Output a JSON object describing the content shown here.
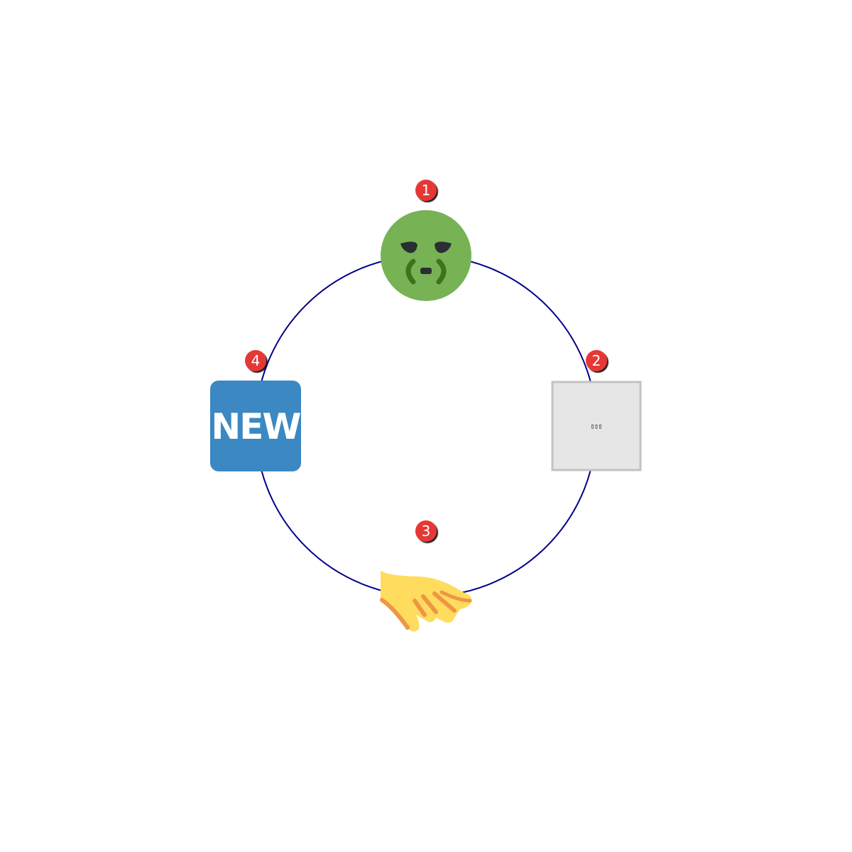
{
  "diagram": {
    "ring_color": "#00008b",
    "badge_color": "#e53935",
    "nodes": [
      {
        "badge": "1",
        "icon": "nauseated-face-icon",
        "color": "#77b255"
      },
      {
        "badge": "2",
        "icon": "missing-glyph-placeholder-icon",
        "label": "▯▯▯",
        "color": "#e6e6e6"
      },
      {
        "badge": "3",
        "icon": "palm-down-hand-icon",
        "color": "#ffdc5d"
      },
      {
        "badge": "4",
        "icon": "new-button-icon",
        "label": "NEW",
        "color": "#3b88c3"
      }
    ]
  }
}
